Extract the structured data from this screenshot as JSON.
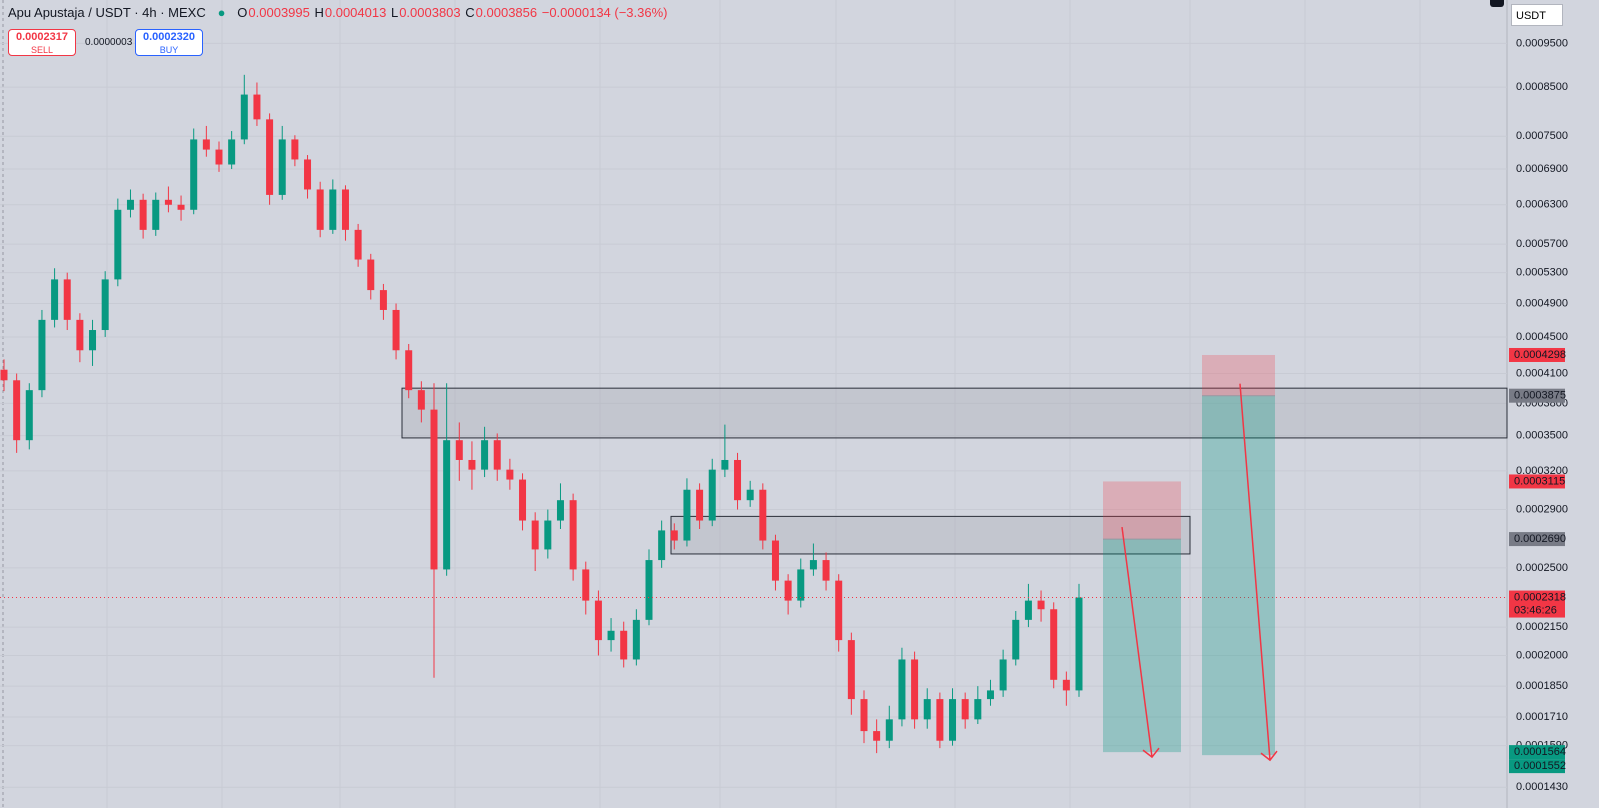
{
  "header": {
    "title": "Apu Apustaja / USDT · 4h · MEXC",
    "open_label": "O",
    "open": "0.0003995",
    "high_label": "H",
    "high": "0.0004013",
    "low_label": "L",
    "low": "0.0003803",
    "close_label": "C",
    "close": "0.0003856",
    "change": "−0.0000134 (−3.36%)"
  },
  "trade": {
    "sell_price": "0.0002317",
    "sell_label": "SELL",
    "spread": "0.0000003",
    "buy_price": "0.0002320",
    "buy_label": "BUY"
  },
  "currency": "USDT",
  "chart_data": {
    "type": "candlestick",
    "log_scale": true,
    "grid": true,
    "up_color": "#089981",
    "down_color": "#f23645",
    "ylim": [
      0.0001413,
      0.001061
    ],
    "yticks": [
      {
        "value": 0.00095,
        "label": "0.0009500"
      },
      {
        "value": 0.00085,
        "label": "0.0008500"
      },
      {
        "value": 0.00075,
        "label": "0.0007500"
      },
      {
        "value": 0.00069,
        "label": "0.0006900"
      },
      {
        "value": 0.00063,
        "label": "0.0006300"
      },
      {
        "value": 0.00057,
        "label": "0.0005700"
      },
      {
        "value": 0.00053,
        "label": "0.0005300"
      },
      {
        "value": 0.00049,
        "label": "0.0004900"
      },
      {
        "value": 0.00045,
        "label": "0.0004500"
      },
      {
        "value": 0.00041,
        "label": "0.0004100"
      },
      {
        "value": 0.00038,
        "label": "0.0003800"
      },
      {
        "value": 0.00035,
        "label": "0.0003500"
      },
      {
        "value": 0.00032,
        "label": "0.0003200"
      },
      {
        "value": 0.00029,
        "label": "0.0002900"
      },
      {
        "value": 0.00025,
        "label": "0.0002500"
      },
      {
        "value": 0.000215,
        "label": "0.0002150"
      },
      {
        "value": 0.0002,
        "label": "0.0002000"
      },
      {
        "value": 0.000185,
        "label": "0.0001850"
      },
      {
        "value": 0.000171,
        "label": "0.0001710"
      },
      {
        "value": 0.000159,
        "label": "0.0001590"
      },
      {
        "value": 0.000143,
        "label": "0.0001430"
      }
    ],
    "open": [
      0.000414,
      0.000403,
      0.000346,
      0.000393,
      0.00047,
      0.000521,
      0.00047,
      0.000435,
      0.000458,
      0.000521,
      0.000622,
      0.000638,
      0.000591,
      0.000638,
      0.00063,
      0.000622,
      0.000744,
      0.000725,
      0.000698,
      0.000744,
      0.000834,
      0.000783,
      0.000646,
      0.000744,
      0.000707,
      0.000655,
      0.000591,
      0.000655,
      0.000591,
      0.000548,
      0.000507,
      0.000482,
      0.000435,
      0.000393,
      0.000374,
      0.000249,
      0.000346,
      0.000329,
      0.000321,
      0.000346,
      0.000321,
      0.000313,
      0.000282,
      0.000262,
      0.000282,
      0.000297,
      0.000249,
      0.00023,
      0.000208,
      0.000213,
      0.000198,
      0.000219,
      0.000255,
      0.000275,
      0.000268,
      0.000305,
      0.000282,
      0.000321,
      0.000329,
      0.000297,
      0.000305,
      0.000268,
      0.000242,
      0.00023,
      0.000249,
      0.000255,
      0.000242,
      0.000208,
      0.000179,
      0.000165,
      0.000161,
      0.00017,
      0.000198,
      0.00017,
      0.000179,
      0.000161,
      0.000179,
      0.00017,
      0.000179,
      0.000183,
      0.000198,
      0.000219,
      0.00023,
      0.000225,
      0.000188,
      0.000183
    ],
    "high": [
      0.000425,
      0.00041,
      0.0004,
      0.000482,
      0.000536,
      0.00053,
      0.000478,
      0.00047,
      0.000532,
      0.00064,
      0.000655,
      0.000648,
      0.00065,
      0.00066,
      0.000645,
      0.000765,
      0.00077,
      0.00074,
      0.00076,
      0.000877,
      0.00086,
      0.000795,
      0.00077,
      0.000752,
      0.000715,
      0.000668,
      0.000672,
      0.000662,
      0.0006,
      0.000556,
      0.000515,
      0.00049,
      0.000442,
      0.000402,
      0.0004,
      0.0004,
      0.000362,
      0.000345,
      0.000358,
      0.000352,
      0.00033,
      0.000318,
      0.000288,
      0.00029,
      0.00031,
      0.000302,
      0.000254,
      0.000236,
      0.00022,
      0.000218,
      0.000225,
      0.000262,
      0.000282,
      0.00028,
      0.000314,
      0.00031,
      0.00033,
      0.00036,
      0.000335,
      0.000312,
      0.00031,
      0.000272,
      0.000246,
      0.000256,
      0.000266,
      0.00026,
      0.000246,
      0.000212,
      0.000183,
      0.00017,
      0.000176,
      0.000204,
      0.000202,
      0.000184,
      0.000182,
      0.000184,
      0.000182,
      0.000185,
      0.000188,
      0.000203,
      0.000224,
      0.00024,
      0.000236,
      0.000229,
      0.000192,
      0.00024
    ],
    "low": [
      0.000392,
      0.000335,
      0.000338,
      0.000386,
      0.000461,
      0.000458,
      0.000422,
      0.000418,
      0.00045,
      0.000512,
      0.00061,
      0.000578,
      0.000582,
      0.000618,
      0.000605,
      0.000615,
      0.000712,
      0.000685,
      0.00069,
      0.000735,
      0.00077,
      0.00063,
      0.000638,
      0.000695,
      0.00064,
      0.00058,
      0.000585,
      0.000575,
      0.000538,
      0.000495,
      0.00047,
      0.000425,
      0.000385,
      0.000362,
      0.000189,
      0.000245,
      0.000312,
      0.000305,
      0.000315,
      0.000312,
      0.000305,
      0.000275,
      0.000248,
      0.000256,
      0.000276,
      0.000242,
      0.000222,
      0.0002,
      0.000202,
      0.000194,
      0.000195,
      0.000216,
      0.00025,
      0.000262,
      0.000264,
      0.000276,
      0.000278,
      0.000315,
      0.00029,
      0.000292,
      0.000262,
      0.000236,
      0.000222,
      0.000226,
      0.000245,
      0.000236,
      0.000202,
      0.000172,
      0.00016,
      0.000156,
      0.000158,
      0.000167,
      0.000166,
      0.000166,
      0.000158,
      0.000159,
      0.000166,
      0.000168,
      0.000176,
      0.00018,
      0.000195,
      0.000215,
      0.000218,
      0.000184,
      0.000176,
      0.00018
    ],
    "close": [
      0.000403,
      0.000346,
      0.000393,
      0.00047,
      0.000521,
      0.00047,
      0.000435,
      0.000458,
      0.000521,
      0.000622,
      0.000638,
      0.000591,
      0.000638,
      0.00063,
      0.000622,
      0.000744,
      0.000725,
      0.000698,
      0.000744,
      0.000834,
      0.000783,
      0.000646,
      0.000744,
      0.000707,
      0.000655,
      0.000591,
      0.000655,
      0.000591,
      0.000548,
      0.000507,
      0.000482,
      0.000435,
      0.000393,
      0.000374,
      0.000249,
      0.000346,
      0.000329,
      0.000321,
      0.000346,
      0.000321,
      0.000313,
      0.000282,
      0.000262,
      0.000282,
      0.000297,
      0.000249,
      0.00023,
      0.000208,
      0.000213,
      0.000198,
      0.000219,
      0.000255,
      0.000275,
      0.000268,
      0.000305,
      0.000282,
      0.000321,
      0.000329,
      0.000297,
      0.000305,
      0.000268,
      0.000242,
      0.00023,
      0.000249,
      0.000255,
      0.000242,
      0.000208,
      0.000179,
      0.000165,
      0.000161,
      0.00017,
      0.000198,
      0.00017,
      0.000179,
      0.000161,
      0.000179,
      0.00017,
      0.000179,
      0.000183,
      0.000198,
      0.000219,
      0.00023,
      0.000225,
      0.000188,
      0.000183,
      0.0002318
    ],
    "last_price": 0.0002318,
    "countdown": "03:46:26",
    "zones": [
      {
        "top": 0.000395,
        "bottom": 0.000348
      },
      {
        "top": 0.000285,
        "bottom": 0.000259
      }
    ],
    "positions": [
      {
        "stop": 0.0003115,
        "entry": {
          "value": 0.000269,
          "label": "0.0002690"
        },
        "target": 0.0001564
      },
      {
        "stop": 0.0004298,
        "entry": 0.0003875,
        "target": 0.0001552
      }
    ]
  }
}
